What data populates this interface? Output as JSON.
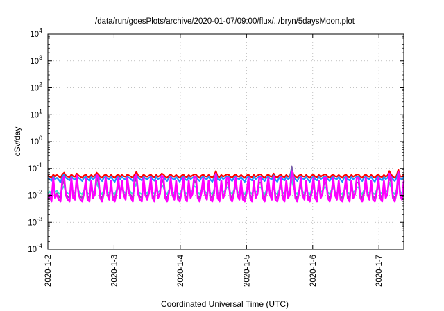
{
  "chart_data": {
    "type": "line",
    "title": "/data/run/goesPlots/archive/2020-01-07/09:00/flux/../bryn/5daysMoon.plot",
    "xlabel": "Coordinated Universal Time (UTC)",
    "ylabel": "cSv/day",
    "y_scale": "log",
    "ylim": [
      0.0001,
      10000
    ],
    "y_ticks": [
      {
        "value": 0.0001,
        "base": "10",
        "exp": "-4"
      },
      {
        "value": 0.001,
        "base": "10",
        "exp": "-3"
      },
      {
        "value": 0.01,
        "base": "10",
        "exp": "-2"
      },
      {
        "value": 0.1,
        "base": "10",
        "exp": "-1"
      },
      {
        "value": 1,
        "base": "10",
        "exp": "0"
      },
      {
        "value": 10,
        "base": "10",
        "exp": "1"
      },
      {
        "value": 100,
        "base": "10",
        "exp": "2"
      },
      {
        "value": 1000,
        "base": "10",
        "exp": "3"
      },
      {
        "value": 10000,
        "base": "10",
        "exp": "4"
      }
    ],
    "xlim": [
      "2020-01-02",
      "2020-01-07 09:00"
    ],
    "x_ticks": [
      {
        "value": "2020-01-02",
        "label": "2020-1-2"
      },
      {
        "value": "2020-01-03",
        "label": "2020-1-3"
      },
      {
        "value": "2020-01-04",
        "label": "2020-1-4"
      },
      {
        "value": "2020-01-05",
        "label": "2020-1-5"
      },
      {
        "value": "2020-01-06",
        "label": "2020-1-6"
      },
      {
        "value": "2020-01-07",
        "label": "2020-1-7"
      }
    ],
    "grid": true,
    "series": [
      {
        "color": "#ff0000",
        "values": [
          0.055,
          0.05,
          0.045,
          0.06,
          0.05,
          0.058,
          0.052,
          0.045,
          0.06,
          0.07,
          0.055,
          0.05,
          0.048,
          0.06,
          0.052,
          0.05,
          0.065,
          0.055,
          0.05,
          0.045,
          0.055,
          0.06,
          0.05,
          0.048,
          0.058,
          0.05,
          0.055,
          0.07,
          0.06,
          0.05,
          0.045,
          0.055,
          0.06,
          0.052,
          0.05,
          0.058,
          0.05,
          0.045,
          0.055,
          0.06,
          0.05,
          0.058,
          0.052,
          0.05,
          0.06,
          0.055,
          0.05,
          0.045,
          0.06,
          0.075,
          0.055,
          0.05,
          0.048,
          0.06,
          0.052,
          0.05,
          0.055,
          0.06,
          0.05,
          0.048,
          0.058,
          0.05,
          0.055,
          0.065,
          0.06,
          0.05,
          0.045,
          0.055,
          0.06,
          0.052,
          0.05,
          0.058,
          0.05,
          0.045,
          0.055,
          0.06,
          0.05,
          0.048,
          0.058,
          0.05,
          0.055,
          0.06,
          0.06,
          0.05,
          0.045,
          0.055,
          0.06,
          0.052,
          0.05,
          0.058,
          0.05,
          0.045,
          0.055,
          0.08,
          0.05,
          0.048,
          0.058,
          0.05,
          0.055,
          0.06,
          0.06,
          0.05,
          0.045,
          0.055,
          0.06,
          0.052,
          0.05,
          0.058,
          0.05,
          0.045,
          0.055,
          0.06,
          0.05,
          0.048,
          0.058,
          0.05,
          0.055,
          0.06,
          0.06,
          0.05,
          0.045,
          0.055,
          0.06,
          0.052,
          0.05,
          0.065,
          0.05,
          0.045,
          0.055,
          0.06,
          0.05,
          0.048,
          0.058,
          0.05,
          0.055,
          0.09,
          0.06,
          0.05,
          0.045,
          0.055,
          0.06,
          0.052,
          0.05,
          0.058,
          0.05,
          0.045,
          0.055,
          0.06,
          0.05,
          0.048,
          0.058,
          0.05,
          0.055,
          0.06,
          0.06,
          0.05,
          0.045,
          0.055,
          0.06,
          0.052,
          0.05,
          0.058,
          0.05,
          0.045,
          0.055,
          0.06,
          0.05,
          0.048,
          0.058,
          0.05,
          0.055,
          0.06,
          0.06,
          0.05,
          0.045,
          0.055,
          0.06,
          0.052,
          0.05,
          0.058,
          0.05,
          0.045,
          0.055,
          0.06,
          0.05,
          0.048,
          0.058,
          0.05,
          0.055,
          0.08,
          0.06,
          0.05,
          0.045,
          0.055,
          0.09,
          0.052,
          0.05,
          0.058
        ]
      },
      {
        "color": "#1e90ff",
        "values": [
          0.045,
          0.04,
          0.035,
          0.05,
          0.04,
          0.045,
          0.038,
          0.03,
          0.05,
          0.06,
          0.045,
          0.04,
          0.036,
          0.05,
          0.042,
          0.038,
          0.05,
          0.045,
          0.04,
          0.034,
          0.045,
          0.05,
          0.04,
          0.035,
          0.048,
          0.04,
          0.045,
          0.06,
          0.05,
          0.04,
          0.034,
          0.045,
          0.05,
          0.042,
          0.04,
          0.048,
          0.038,
          0.032,
          0.045,
          0.05,
          0.04,
          0.048,
          0.042,
          0.038,
          0.05,
          0.045,
          0.04,
          0.034,
          0.05,
          0.06,
          0.045,
          0.04,
          0.036,
          0.05,
          0.042,
          0.04,
          0.045,
          0.05,
          0.04,
          0.035,
          0.048,
          0.04,
          0.045,
          0.055,
          0.05,
          0.04,
          0.034,
          0.045,
          0.05,
          0.042,
          0.038,
          0.048,
          0.04,
          0.032,
          0.045,
          0.05,
          0.04,
          0.036,
          0.048,
          0.04,
          0.045,
          0.05,
          0.05,
          0.04,
          0.034,
          0.045,
          0.05,
          0.042,
          0.04,
          0.048,
          0.038,
          0.032,
          0.045,
          0.065,
          0.04,
          0.036,
          0.048,
          0.04,
          0.045,
          0.05,
          0.05,
          0.04,
          0.034,
          0.045,
          0.05,
          0.042,
          0.04,
          0.048,
          0.038,
          0.032,
          0.045,
          0.05,
          0.04,
          0.036,
          0.048,
          0.04,
          0.045,
          0.05,
          0.05,
          0.04,
          0.034,
          0.045,
          0.05,
          0.042,
          0.04,
          0.055,
          0.038,
          0.032,
          0.045,
          0.05,
          0.04,
          0.036,
          0.048,
          0.04,
          0.045,
          0.11,
          0.05,
          0.04,
          0.034,
          0.045,
          0.05,
          0.042,
          0.04,
          0.048,
          0.038,
          0.032,
          0.045,
          0.05,
          0.04,
          0.036,
          0.048,
          0.04,
          0.045,
          0.05,
          0.05,
          0.04,
          0.034,
          0.045,
          0.05,
          0.042,
          0.04,
          0.048,
          0.038,
          0.032,
          0.045,
          0.05,
          0.04,
          0.036,
          0.048,
          0.04,
          0.045,
          0.05,
          0.05,
          0.04,
          0.034,
          0.045,
          0.05,
          0.042,
          0.04,
          0.048,
          0.038,
          0.032,
          0.045,
          0.05,
          0.04,
          0.036,
          0.048,
          0.04,
          0.045,
          0.065,
          0.05,
          0.04,
          0.034,
          0.045,
          0.075,
          0.042,
          0.04,
          0.048
        ]
      },
      {
        "color": "#40e0d0",
        "values": [
          0.012,
          0.014,
          0.011,
          0.02,
          0.013,
          0.015,
          0.012,
          0.011,
          0.018,
          0.022,
          0.014,
          0.012,
          0.011,
          0.02,
          0.013,
          0.012,
          0.025,
          0.015,
          0.012,
          0.011,
          0.016,
          0.019,
          0.012,
          0.011,
          0.018,
          0.013,
          0.015,
          0.03,
          0.02,
          0.013,
          0.011,
          0.016,
          0.02,
          0.014,
          0.012,
          0.018,
          0.012,
          0.011,
          0.016,
          0.02,
          0.013,
          0.018,
          0.014,
          0.012,
          0.02,
          0.016,
          0.013,
          0.011,
          0.02,
          0.028,
          0.015,
          0.012,
          0.011,
          0.02,
          0.014,
          0.012,
          0.016,
          0.02,
          0.013,
          0.011,
          0.018,
          0.013,
          0.015,
          0.025,
          0.02,
          0.013,
          0.011,
          0.016,
          0.02,
          0.014,
          0.012,
          0.018,
          0.012,
          0.011,
          0.016,
          0.02,
          0.013,
          0.011,
          0.018,
          0.013,
          0.015,
          0.022,
          0.02,
          0.013,
          0.011,
          0.016,
          0.02,
          0.014,
          0.012,
          0.018,
          0.012,
          0.011,
          0.016,
          0.03,
          0.013,
          0.011,
          0.018,
          0.013,
          0.015,
          0.02,
          0.02,
          0.013,
          0.011,
          0.016,
          0.02,
          0.014,
          0.012,
          0.018,
          0.012,
          0.011,
          0.016,
          0.02,
          0.013,
          0.011,
          0.018,
          0.013,
          0.015,
          0.02,
          0.02,
          0.013,
          0.011,
          0.016,
          0.02,
          0.014,
          0.012,
          0.022,
          0.012,
          0.011,
          0.016,
          0.02,
          0.013,
          0.011,
          0.018,
          0.013,
          0.015,
          0.04,
          0.02,
          0.013,
          0.011,
          0.016,
          0.02,
          0.014,
          0.012,
          0.018,
          0.012,
          0.011,
          0.016,
          0.02,
          0.013,
          0.011,
          0.018,
          0.013,
          0.015,
          0.02,
          0.02,
          0.013,
          0.011,
          0.016,
          0.02,
          0.014,
          0.012,
          0.018,
          0.012,
          0.011,
          0.016,
          0.02,
          0.013,
          0.011,
          0.018,
          0.013,
          0.015,
          0.02,
          0.02,
          0.013,
          0.011,
          0.016,
          0.02,
          0.014,
          0.012,
          0.018,
          0.012,
          0.011,
          0.016,
          0.02,
          0.013,
          0.011,
          0.018,
          0.013,
          0.015,
          0.03,
          0.02,
          0.013,
          0.011,
          0.016,
          0.035,
          0.014,
          0.012,
          0.018
        ]
      },
      {
        "color": "#7b5ea7",
        "values": [
          0.009,
          0.011,
          0.008,
          0.03,
          0.01,
          0.012,
          0.009,
          0.008,
          0.025,
          0.035,
          0.011,
          0.009,
          0.008,
          0.03,
          0.01,
          0.009,
          0.04,
          0.012,
          0.009,
          0.008,
          0.013,
          0.028,
          0.009,
          0.008,
          0.025,
          0.01,
          0.012,
          0.045,
          0.03,
          0.01,
          0.008,
          0.013,
          0.03,
          0.011,
          0.009,
          0.025,
          0.009,
          0.008,
          0.013,
          0.03,
          0.01,
          0.025,
          0.011,
          0.009,
          0.03,
          0.013,
          0.01,
          0.008,
          0.03,
          0.045,
          0.012,
          0.009,
          0.008,
          0.03,
          0.011,
          0.009,
          0.013,
          0.03,
          0.01,
          0.008,
          0.025,
          0.01,
          0.012,
          0.04,
          0.03,
          0.01,
          0.008,
          0.013,
          0.03,
          0.011,
          0.009,
          0.025,
          0.009,
          0.008,
          0.013,
          0.03,
          0.01,
          0.008,
          0.025,
          0.01,
          0.012,
          0.035,
          0.03,
          0.01,
          0.008,
          0.013,
          0.03,
          0.011,
          0.009,
          0.025,
          0.009,
          0.008,
          0.013,
          0.05,
          0.01,
          0.008,
          0.025,
          0.01,
          0.012,
          0.03,
          0.03,
          0.01,
          0.008,
          0.013,
          0.03,
          0.011,
          0.009,
          0.025,
          0.009,
          0.008,
          0.013,
          0.03,
          0.01,
          0.008,
          0.025,
          0.01,
          0.012,
          0.03,
          0.03,
          0.01,
          0.008,
          0.013,
          0.03,
          0.011,
          0.009,
          0.035,
          0.009,
          0.008,
          0.013,
          0.03,
          0.01,
          0.008,
          0.025,
          0.01,
          0.012,
          0.12,
          0.03,
          0.01,
          0.008,
          0.013,
          0.03,
          0.011,
          0.009,
          0.025,
          0.009,
          0.008,
          0.013,
          0.03,
          0.01,
          0.008,
          0.025,
          0.01,
          0.012,
          0.03,
          0.03,
          0.01,
          0.008,
          0.013,
          0.03,
          0.011,
          0.009,
          0.025,
          0.009,
          0.008,
          0.013,
          0.03,
          0.01,
          0.008,
          0.025,
          0.01,
          0.012,
          0.03,
          0.03,
          0.01,
          0.008,
          0.013,
          0.03,
          0.011,
          0.009,
          0.025,
          0.009,
          0.008,
          0.013,
          0.03,
          0.01,
          0.008,
          0.025,
          0.01,
          0.012,
          0.05,
          0.03,
          0.01,
          0.008,
          0.013,
          0.06,
          0.011,
          0.009,
          0.025
        ]
      },
      {
        "color": "#ff00ff",
        "values": [
          0.007,
          0.01,
          0.006,
          0.045,
          0.008,
          0.011,
          0.007,
          0.006,
          0.035,
          0.05,
          0.01,
          0.007,
          0.006,
          0.045,
          0.008,
          0.007,
          0.055,
          0.011,
          0.007,
          0.006,
          0.012,
          0.04,
          0.007,
          0.006,
          0.035,
          0.008,
          0.011,
          0.06,
          0.045,
          0.008,
          0.006,
          0.012,
          0.045,
          0.01,
          0.007,
          0.035,
          0.007,
          0.006,
          0.012,
          0.045,
          0.008,
          0.035,
          0.01,
          0.007,
          0.045,
          0.012,
          0.008,
          0.006,
          0.045,
          0.06,
          0.011,
          0.007,
          0.006,
          0.045,
          0.01,
          0.007,
          0.012,
          0.045,
          0.008,
          0.006,
          0.035,
          0.008,
          0.011,
          0.055,
          0.045,
          0.008,
          0.006,
          0.012,
          0.045,
          0.01,
          0.007,
          0.035,
          0.007,
          0.006,
          0.012,
          0.045,
          0.008,
          0.006,
          0.035,
          0.008,
          0.011,
          0.05,
          0.045,
          0.008,
          0.006,
          0.012,
          0.045,
          0.01,
          0.007,
          0.035,
          0.007,
          0.006,
          0.012,
          0.065,
          0.008,
          0.006,
          0.035,
          0.008,
          0.011,
          0.045,
          0.045,
          0.008,
          0.006,
          0.012,
          0.045,
          0.01,
          0.007,
          0.035,
          0.007,
          0.006,
          0.012,
          0.045,
          0.008,
          0.006,
          0.035,
          0.008,
          0.011,
          0.045,
          0.045,
          0.008,
          0.006,
          0.012,
          0.045,
          0.01,
          0.007,
          0.05,
          0.007,
          0.006,
          0.012,
          0.045,
          0.008,
          0.006,
          0.035,
          0.008,
          0.011,
          0.08,
          0.045,
          0.008,
          0.006,
          0.012,
          0.045,
          0.01,
          0.007,
          0.035,
          0.007,
          0.006,
          0.012,
          0.045,
          0.008,
          0.006,
          0.035,
          0.008,
          0.011,
          0.045,
          0.045,
          0.008,
          0.006,
          0.012,
          0.045,
          0.01,
          0.007,
          0.035,
          0.007,
          0.006,
          0.012,
          0.045,
          0.008,
          0.006,
          0.035,
          0.008,
          0.011,
          0.045,
          0.045,
          0.008,
          0.006,
          0.012,
          0.045,
          0.01,
          0.007,
          0.035,
          0.007,
          0.006,
          0.012,
          0.045,
          0.008,
          0.006,
          0.035,
          0.008,
          0.011,
          0.065,
          0.045,
          0.008,
          0.006,
          0.012,
          0.075,
          0.01,
          0.007,
          0.035
        ]
      }
    ]
  }
}
